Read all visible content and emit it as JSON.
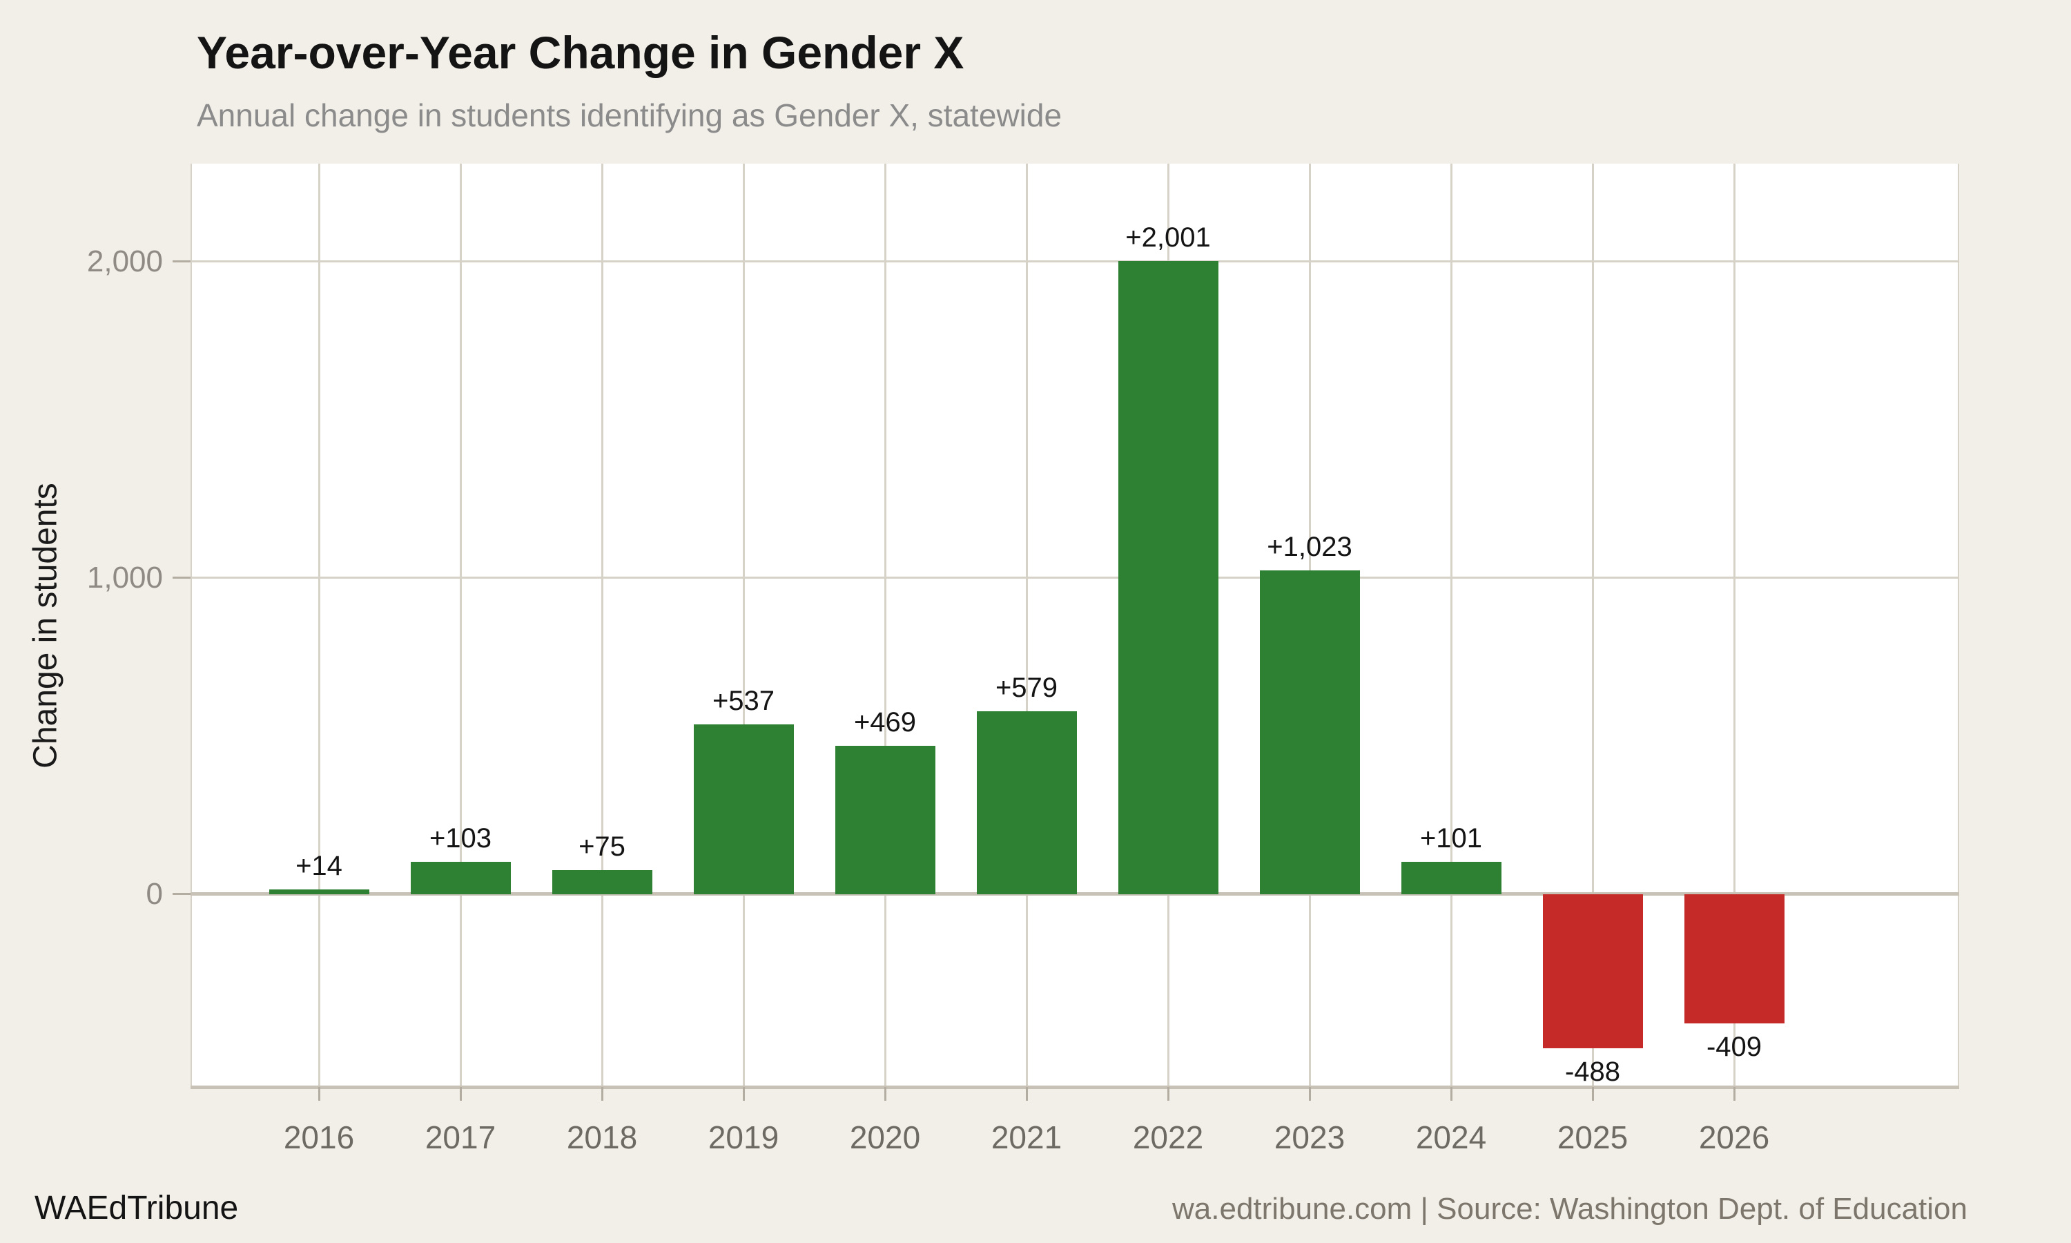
{
  "title": "Year-over-Year Change in Gender X",
  "subtitle": "Annual change in students identifying as Gender X, statewide",
  "footer": {
    "left": "WAEdTribune",
    "right": "wa.edtribune.com | Source: Washington Dept. of Education"
  },
  "chart_data": {
    "type": "bar",
    "title": "Year-over-Year Change in Gender X",
    "subtitle": "Annual change in students identifying as Gender X, statewide",
    "xlabel": "",
    "ylabel": "Change in students",
    "categories": [
      "2016",
      "2017",
      "2018",
      "2019",
      "2020",
      "2021",
      "2022",
      "2023",
      "2024",
      "2025",
      "2026"
    ],
    "values": [
      14,
      103,
      75,
      537,
      469,
      579,
      2001,
      1023,
      101,
      -488,
      -409
    ],
    "bar_labels": [
      "+14",
      "+103",
      "+75",
      "+537",
      "+469",
      "+579",
      "+2,001",
      "+1,023",
      "+101",
      "-488",
      "-409"
    ],
    "y_ticks": [
      {
        "value": 0,
        "label": "0"
      },
      {
        "value": 1000,
        "label": "1,000"
      },
      {
        "value": 2000,
        "label": "2,000"
      }
    ],
    "ylim": [
      -610,
      2310
    ],
    "grid": true,
    "legend": false,
    "positive_color": "#2e8033",
    "negative_color": "#c62a28"
  },
  "theme": {
    "background": "#f2efe8",
    "plot_background": "#ffffff",
    "gridline": "#d7d2c8",
    "axis_line": "#c8c2b6",
    "tick": "#b3ada1",
    "title_color": "#141414",
    "subtitle_color": "#8b8b8b",
    "y_tick_color": "#8f8b84",
    "x_tick_color": "#6d6a64",
    "bar_label_color": "#141414",
    "footer_right_color": "#7c766c"
  }
}
